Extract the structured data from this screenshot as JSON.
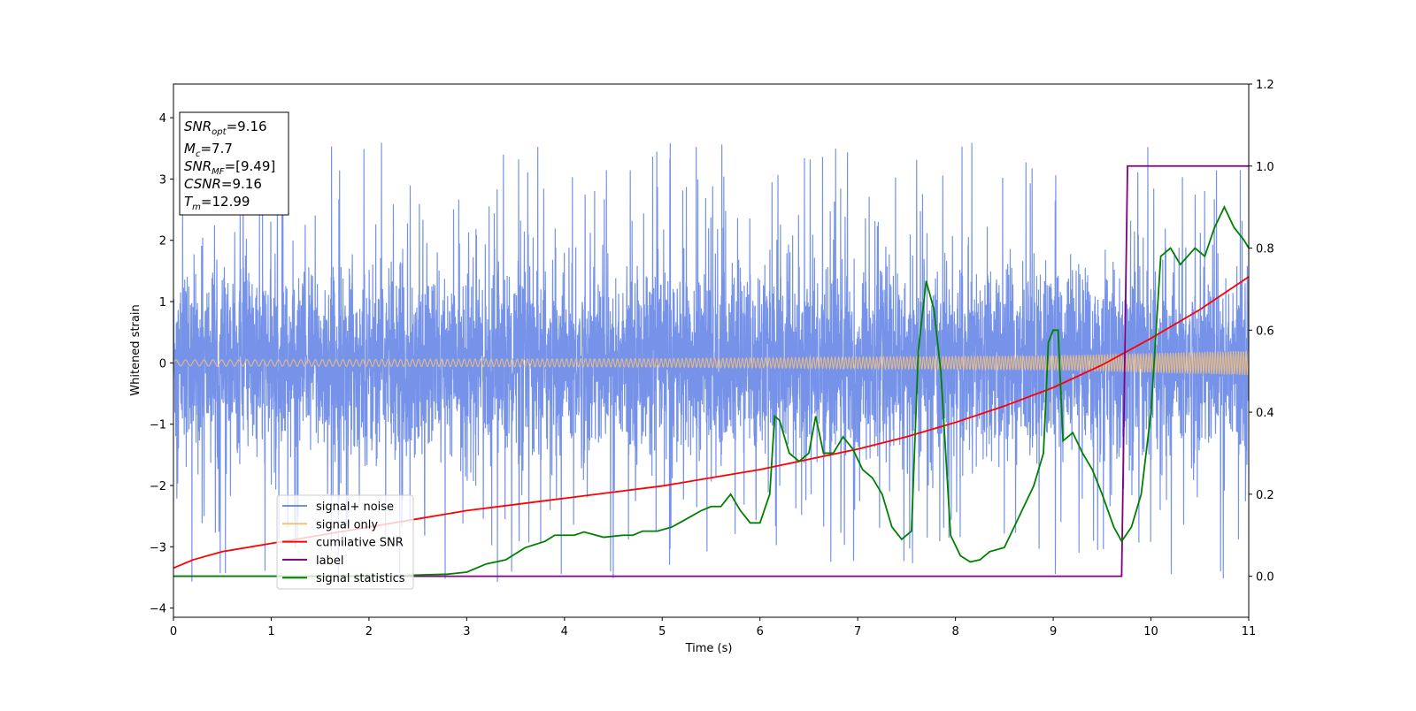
{
  "chart_data": {
    "type": "line",
    "xlabel": "Time (s)",
    "ylabel": "Whitened strain",
    "xlim": [
      0,
      11
    ],
    "ylim_left": [
      -4.15,
      4.55
    ],
    "ylim_right": [
      -0.1,
      1.2
    ],
    "x_ticks": [
      0,
      1,
      2,
      3,
      4,
      5,
      6,
      7,
      8,
      9,
      10,
      11
    ],
    "x_tick_labels": [
      "0",
      "1",
      "2",
      "3",
      "4",
      "5",
      "6",
      "7",
      "8",
      "9",
      "10",
      "11"
    ],
    "y_left_ticks": [
      -4,
      -3,
      -2,
      -1,
      0,
      1,
      2,
      3,
      4
    ],
    "y_left_tick_labels": [
      "−4",
      "−3",
      "−2",
      "−1",
      "0",
      "1",
      "2",
      "3",
      "4"
    ],
    "y_right_ticks": [
      0.0,
      0.2,
      0.4,
      0.6,
      0.8,
      1.0,
      1.2
    ],
    "y_right_tick_labels": [
      "0.0",
      "0.2",
      "0.4",
      "0.6",
      "0.8",
      "1.0",
      "1.2"
    ],
    "grid": false,
    "legend_position": "lower-left",
    "info_box": {
      "lines": [
        {
          "sym": "SNR",
          "sub": "opt",
          "val": "=9.16"
        },
        {
          "sym": "M",
          "sub": "c",
          "val": "=7.7"
        },
        {
          "sym": "SNR",
          "sub": "MF",
          "val": "=[9.49]"
        },
        {
          "sym": "CSNR",
          "sub": "",
          "val": "=9.16"
        },
        {
          "sym": "T",
          "sub": "m",
          "val": "=12.99"
        }
      ]
    },
    "series": [
      {
        "name": "signal+ noise",
        "axis": "left",
        "color": "#4169e1",
        "style": "noise",
        "envelope": {
          "core": 1.2,
          "spikes_max": 4.2,
          "spikes_min": -3.8
        }
      },
      {
        "name": "signal only",
        "axis": "left",
        "color": "#f5c07a",
        "style": "chirp",
        "amplitude": {
          "x": [
            0,
            5,
            9,
            11
          ],
          "y": [
            0.05,
            0.07,
            0.12,
            0.2
          ]
        }
      },
      {
        "name": "cumilative SNR",
        "axis": "right",
        "color": "#ff0000",
        "x": [
          0,
          0.2,
          0.5,
          1,
          1.5,
          2,
          2.5,
          3,
          3.5,
          4,
          4.5,
          5,
          5.5,
          6,
          6.5,
          7,
          7.5,
          8,
          8.5,
          9,
          9.5,
          10,
          10.5,
          11
        ],
        "y": [
          0.02,
          0.04,
          0.06,
          0.08,
          0.1,
          0.12,
          0.14,
          0.16,
          0.175,
          0.19,
          0.205,
          0.22,
          0.24,
          0.26,
          0.285,
          0.31,
          0.34,
          0.375,
          0.415,
          0.46,
          0.515,
          0.58,
          0.65,
          0.73
        ]
      },
      {
        "name": "label",
        "axis": "right",
        "color": "#800080",
        "x": [
          0,
          9.7,
          9.76,
          11
        ],
        "y": [
          0,
          0,
          1,
          1
        ]
      },
      {
        "name": "signal statistics",
        "axis": "right",
        "color": "#008000",
        "x": [
          0,
          0.5,
          1,
          1.5,
          2,
          2.5,
          2.8,
          3,
          3.2,
          3.4,
          3.6,
          3.8,
          3.9,
          4.1,
          4.2,
          4.4,
          4.6,
          4.7,
          4.8,
          4.95,
          5.1,
          5.25,
          5.4,
          5.5,
          5.6,
          5.7,
          5.8,
          5.9,
          6.0,
          6.1,
          6.15,
          6.2,
          6.3,
          6.4,
          6.5,
          6.57,
          6.65,
          6.75,
          6.85,
          6.95,
          7.05,
          7.15,
          7.25,
          7.35,
          7.45,
          7.55,
          7.62,
          7.7,
          7.78,
          7.85,
          7.95,
          8.05,
          8.15,
          8.25,
          8.35,
          8.5,
          8.6,
          8.7,
          8.8,
          8.9,
          8.95,
          9.0,
          9.05,
          9.1,
          9.2,
          9.3,
          9.4,
          9.5,
          9.62,
          9.7,
          9.8,
          9.9,
          10.0,
          10.1,
          10.2,
          10.3,
          10.45,
          10.55,
          10.65,
          10.75,
          10.85,
          10.95,
          11.0
        ],
        "y": [
          0,
          0,
          0,
          0,
          0,
          0.003,
          0.005,
          0.01,
          0.03,
          0.04,
          0.07,
          0.085,
          0.1,
          0.1,
          0.108,
          0.095,
          0.1,
          0.1,
          0.11,
          0.11,
          0.12,
          0.14,
          0.16,
          0.17,
          0.17,
          0.2,
          0.16,
          0.13,
          0.13,
          0.2,
          0.39,
          0.38,
          0.3,
          0.28,
          0.3,
          0.39,
          0.3,
          0.3,
          0.34,
          0.31,
          0.26,
          0.24,
          0.2,
          0.12,
          0.09,
          0.11,
          0.55,
          0.72,
          0.65,
          0.5,
          0.1,
          0.05,
          0.035,
          0.04,
          0.06,
          0.07,
          0.12,
          0.17,
          0.22,
          0.3,
          0.57,
          0.6,
          0.6,
          0.33,
          0.35,
          0.3,
          0.26,
          0.2,
          0.12,
          0.085,
          0.12,
          0.2,
          0.4,
          0.78,
          0.8,
          0.76,
          0.8,
          0.78,
          0.85,
          0.9,
          0.85,
          0.82,
          0.8
        ]
      }
    ]
  }
}
